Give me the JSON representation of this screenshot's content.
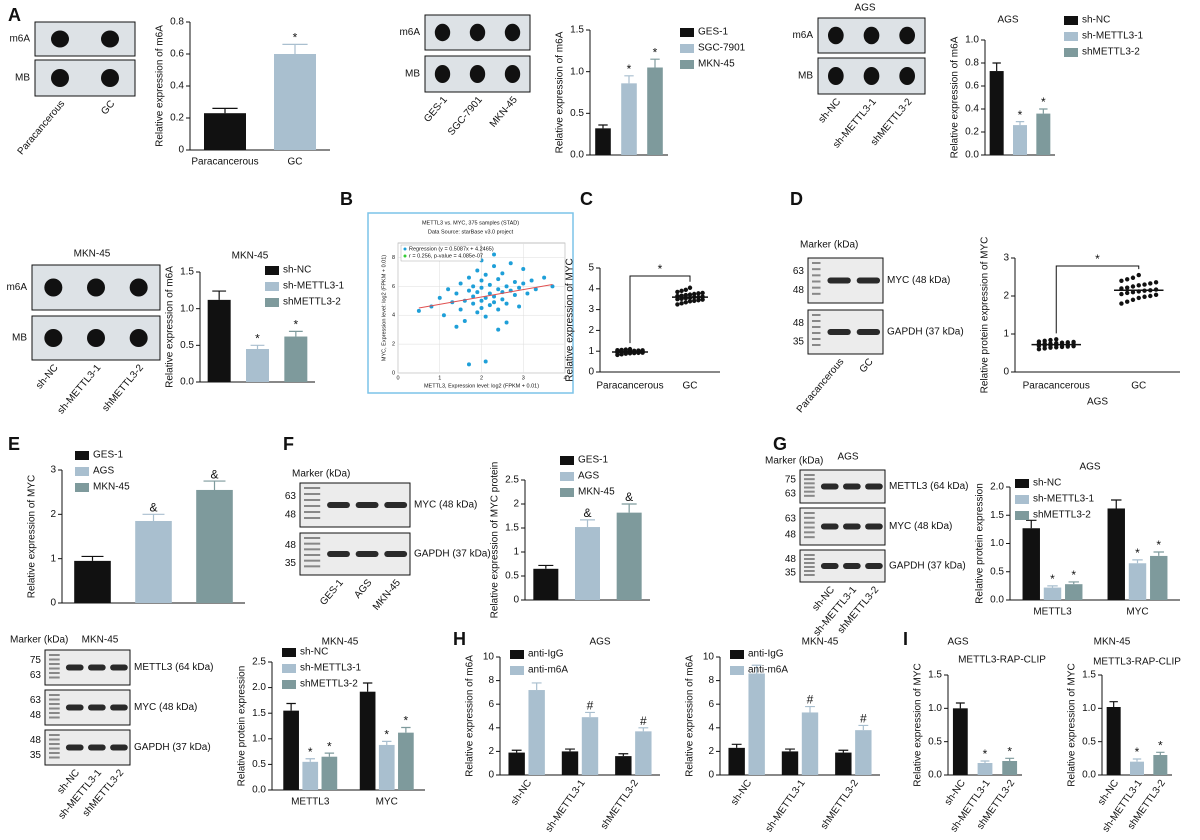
{
  "panel_labels": [
    "A",
    "B",
    "C",
    "D",
    "E",
    "F",
    "G",
    "H",
    "I"
  ],
  "blots": [
    {
      "rows": [
        {
          "label": "m6A"
        },
        {
          "label": "MB"
        }
      ],
      "lanes": [
        "Paracancerous",
        "GC"
      ]
    },
    {
      "rows": [
        {
          "label": "m6A"
        },
        {
          "label": "MB"
        }
      ],
      "lanes": [
        "GES-1",
        "SGC-7901",
        "MKN-45"
      ]
    },
    {
      "title": "AGS",
      "rows": [
        {
          "label": "m6A"
        },
        {
          "label": "MB"
        }
      ],
      "lanes": [
        "sh-NC",
        "sh-METTL3-1",
        "shMETTL3-2"
      ]
    },
    {
      "title": "MKN-45",
      "rows": [
        {
          "label": "m6A"
        },
        {
          "label": "MB"
        }
      ],
      "lanes": [
        "sh-NC",
        "sh-METTL3-1",
        "shMETTL3-2"
      ]
    },
    {
      "marker_title": "Marker (kDa)",
      "rows": [
        {
          "label": "MYC (48 kDa)",
          "markers": [
            63,
            48
          ]
        },
        {
          "label": "GAPDH (37 kDa)",
          "markers": [
            48,
            35
          ]
        }
      ],
      "lanes": [
        "Paracancerous",
        "GC"
      ]
    },
    {
      "marker_title": "Marker (kDa)",
      "rows": [
        {
          "label": "MYC (48 kDa)",
          "markers": [
            63,
            48
          ]
        },
        {
          "label": "GAPDH (37 kDa)",
          "markers": [
            48,
            35
          ]
        }
      ],
      "lanes": [
        "GES-1",
        "AGS",
        "MKN-45"
      ]
    },
    {
      "title": "AGS",
      "marker_title": "Marker (kDa)",
      "rows": [
        {
          "label": "METTL3 (64 kDa)",
          "markers": [
            75,
            63
          ]
        },
        {
          "label": "MYC (48 kDa)",
          "markers": [
            63,
            48
          ]
        },
        {
          "label": "GAPDH (37 kDa)",
          "markers": [
            48,
            35
          ]
        }
      ],
      "lanes": [
        "sh-NC",
        "sh-METTL3-1",
        "shMETTL3-2"
      ]
    },
    {
      "title": "MKN-45",
      "marker_title": "Marker (kDa)",
      "rows": [
        {
          "label": "METTL3 (64 kDa)",
          "markers": [
            75,
            63
          ]
        },
        {
          "label": "MYC (48 kDa)",
          "markers": [
            63,
            48
          ]
        },
        {
          "label": "GAPDH (37 kDa)",
          "markers": [
            48,
            35
          ]
        }
      ],
      "lanes": [
        "sh-NC",
        "sh-METTL3-1",
        "shMETTL3-2"
      ]
    }
  ],
  "chart_data": [
    {
      "type": "bar",
      "ylabel": "Relative expression of m6A",
      "categories": [
        "Paracancerous",
        "GC"
      ],
      "values": [
        0.23,
        0.6
      ],
      "errors": [
        0.03,
        0.06
      ],
      "colors": [
        "#111111",
        "#a9bfcf"
      ],
      "marks": [
        null,
        "*"
      ],
      "ylim": [
        0,
        0.8
      ],
      "yticks": [
        0,
        0.2,
        0.4,
        0.6,
        0.8
      ],
      "legend": false,
      "xlabels": "horizontal"
    },
    {
      "type": "bar",
      "ylabel": "Relative expression of m6A",
      "categories": [
        "GES-1",
        "SGC-7901",
        "MKN-45"
      ],
      "values": [
        0.32,
        0.86,
        1.05
      ],
      "errors": [
        0.04,
        0.09,
        0.1
      ],
      "colors": [
        "#111111",
        "#a9bfcf",
        "#7e9a9c"
      ],
      "marks": [
        null,
        "*",
        "*"
      ],
      "ylim": [
        0,
        1.5
      ],
      "yticks": [
        {
          "value": 0,
          "label": "0.0"
        },
        {
          "value": 0.5,
          "label": "0.5"
        },
        {
          "value": 1,
          "label": "1.0"
        },
        {
          "value": 1.5,
          "label": "1.5"
        }
      ],
      "legend": true,
      "xlabels": "none"
    },
    {
      "type": "bar",
      "title": "AGS",
      "ylabel": "Relative expression of m6A",
      "categories": [
        "sh-NC",
        "sh-METTL3-1",
        "shMETTL3-2"
      ],
      "values": [
        0.73,
        0.26,
        0.36
      ],
      "errors": [
        0.07,
        0.03,
        0.04
      ],
      "colors": [
        "#111111",
        "#a9bfcf",
        "#7e9a9c"
      ],
      "marks": [
        null,
        "*",
        "*"
      ],
      "ylim": [
        0,
        1
      ],
      "yticks": [
        {
          "value": 0,
          "label": "0.0"
        },
        {
          "value": 0.2,
          "label": "0.2"
        },
        {
          "value": 0.4,
          "label": "0.4"
        },
        {
          "value": 0.6,
          "label": "0.6"
        },
        {
          "value": 0.8,
          "label": "0.8"
        },
        {
          "value": 1,
          "label": "1.0"
        }
      ],
      "legend": true,
      "xlabels": "none"
    },
    {
      "type": "bar",
      "title": "MKN-45",
      "ylabel": "Relative expression of m6A",
      "categories": [
        "sh-NC",
        "sh-METTL3-1",
        "shMETTL3-2"
      ],
      "values": [
        1.12,
        0.45,
        0.62
      ],
      "errors": [
        0.12,
        0.05,
        0.07
      ],
      "colors": [
        "#111111",
        "#a9bfcf",
        "#7e9a9c"
      ],
      "marks": [
        null,
        "*",
        "*"
      ],
      "ylim": [
        0,
        1.5
      ],
      "yticks": [
        {
          "value": 0,
          "label": "0.0"
        },
        {
          "value": 0.5,
          "label": "0.5"
        },
        {
          "value": 1,
          "label": "1.0"
        },
        {
          "value": 1.5,
          "label": "1.5"
        }
      ],
      "legend": true,
      "xlabels": "none"
    },
    {
      "type": "scatter",
      "title": "METTL3 vs. MYC, 375 samples (STAD)",
      "subtitle": "Data Source: starBase v3.0 project",
      "legend_entries": [
        "Regression (y = 0.5087x + 4.2465)",
        "r = 0.256, p-value = 4.085e-07"
      ],
      "xlabel": "METTL3, Expression level: log2 (FPKM + 0.01)",
      "ylabel": "MYC, Expression level: log2 (FPKM + 0.01)",
      "regression": {
        "slope": 0.5087,
        "intercept": 4.2465
      },
      "color": "#1e9fd8",
      "line_color": "#e05050",
      "grid": true,
      "xlim": [
        0,
        4
      ],
      "xticks": [
        0,
        1,
        2,
        3,
        4
      ],
      "ylim": [
        0,
        9
      ],
      "yticks": [
        0,
        2,
        4,
        6,
        8
      ],
      "x": [
        0.5,
        0.8,
        1.0,
        1.1,
        1.2,
        1.3,
        1.4,
        1.5,
        1.5,
        1.6,
        1.6,
        1.7,
        1.7,
        1.8,
        1.8,
        1.8,
        1.9,
        1.9,
        1.9,
        2.0,
        2.0,
        2.0,
        2.0,
        2.1,
        2.1,
        2.1,
        2.2,
        2.2,
        2.2,
        2.3,
        2.3,
        2.3,
        2.4,
        2.4,
        2.4,
        2.5,
        2.5,
        2.5,
        2.6,
        2.6,
        2.7,
        2.7,
        2.8,
        2.8,
        2.9,
        2.9,
        3.0,
        3.0,
        3.1,
        3.2,
        3.3,
        3.5,
        3.7,
        1.4,
        2.6,
        2.1,
        1.7,
        2.3,
        2.0,
        2.4
      ],
      "y": [
        4.3,
        4.6,
        5.2,
        4.0,
        5.8,
        4.9,
        5.5,
        6.2,
        4.4,
        5.0,
        3.6,
        5.7,
        6.6,
        4.8,
        5.3,
        6.0,
        4.2,
        5.6,
        7.1,
        5.0,
        5.9,
        4.5,
        6.4,
        5.2,
        3.9,
        6.8,
        5.5,
        4.7,
        6.1,
        5.3,
        7.4,
        4.9,
        5.8,
        4.4,
        6.5,
        5.6,
        6.9,
        5.1,
        6.0,
        4.8,
        5.7,
        7.6,
        5.4,
        6.3,
        5.9,
        4.6,
        6.2,
        7.2,
        5.5,
        6.4,
        5.8,
        6.6,
        6.0,
        3.2,
        3.5,
        0.8,
        0.6,
        8.2,
        7.8,
        3.0
      ]
    },
    {
      "type": "dot",
      "ylabel": "Relative expression of MYC",
      "categories": [
        "Paracancerous",
        "GC"
      ],
      "color": "#111111",
      "bracket": "*",
      "ylim": [
        0,
        5
      ],
      "yticks": [
        0,
        1,
        2,
        3,
        4,
        5
      ],
      "means": [
        0.96,
        3.6
      ],
      "points": [
        [
          0.82,
          0.85,
          0.88,
          0.9,
          0.91,
          0.92,
          0.93,
          0.94,
          0.95,
          0.95,
          0.96,
          0.97,
          0.98,
          0.98,
          0.99,
          1.0,
          1.0,
          1.01,
          1.02,
          1.03,
          1.04,
          1.05,
          1.06,
          1.08,
          1.1
        ],
        [
          3.25,
          3.3,
          3.35,
          3.4,
          3.42,
          3.45,
          3.48,
          3.5,
          3.52,
          3.55,
          3.57,
          3.6,
          3.6,
          3.62,
          3.65,
          3.67,
          3.7,
          3.72,
          3.75,
          3.78,
          3.8,
          3.85,
          3.9,
          3.95,
          4.05
        ]
      ]
    },
    {
      "type": "dot",
      "ylabel": "Relative protein expression of MYC",
      "xlabel": "AGS",
      "categories": [
        "Paracancerous",
        "GC"
      ],
      "color": "#111111",
      "bracket": "*",
      "ylim": [
        0,
        3
      ],
      "yticks": [
        0,
        1,
        2,
        3
      ],
      "means": [
        0.72,
        2.15
      ],
      "points": [
        [
          0.6,
          0.62,
          0.64,
          0.65,
          0.66,
          0.67,
          0.68,
          0.69,
          0.7,
          0.7,
          0.71,
          0.72,
          0.72,
          0.73,
          0.74,
          0.75,
          0.75,
          0.76,
          0.77,
          0.78,
          0.79,
          0.8,
          0.82,
          0.84,
          0.86
        ],
        [
          1.8,
          1.85,
          1.9,
          1.95,
          1.98,
          2.0,
          2.03,
          2.05,
          2.08,
          2.1,
          2.12,
          2.14,
          2.15,
          2.17,
          2.2,
          2.22,
          2.25,
          2.28,
          2.3,
          2.33,
          2.36,
          2.4,
          2.44,
          2.48,
          2.55
        ]
      ]
    },
    {
      "type": "bar",
      "ylabel": "Relative expression of MYC",
      "categories": [
        "GES-1",
        "AGS",
        "MKN-45"
      ],
      "values": [
        0.95,
        1.85,
        2.55
      ],
      "errors": [
        0.1,
        0.15,
        0.2
      ],
      "colors": [
        "#111111",
        "#a9bfcf",
        "#7e9a9c"
      ],
      "marks": [
        null,
        "&",
        "&"
      ],
      "ylim": [
        0,
        3
      ],
      "yticks": [
        0,
        1,
        2,
        3
      ],
      "legend": true,
      "xlabels": "none"
    },
    {
      "type": "bar",
      "ylabel": "Relative expression of MYC protein",
      "categories": [
        "GES-1",
        "AGS",
        "MKN-45"
      ],
      "values": [
        0.65,
        1.52,
        1.82
      ],
      "errors": [
        0.07,
        0.15,
        0.18
      ],
      "colors": [
        "#111111",
        "#a9bfcf",
        "#7e9a9c"
      ],
      "marks": [
        null,
        "&",
        "&"
      ],
      "ylim": [
        0,
        2.5
      ],
      "yticks": [
        0,
        0.5,
        1,
        1.5,
        2,
        2.5
      ],
      "legend": true,
      "xlabels": "none"
    },
    {
      "type": "grouped_bar",
      "title": "AGS",
      "ylabel": "Relative protein expression",
      "categories": [
        "METTL3",
        "MYC"
      ],
      "ylim": [
        0,
        2
      ],
      "yticks": [
        {
          "value": 0,
          "label": "0.0"
        },
        {
          "value": 0.5,
          "label": "0.5"
        },
        {
          "value": 1,
          "label": "1.0"
        },
        {
          "value": 1.5,
          "label": "1.5"
        },
        {
          "value": 2,
          "label": "2.0"
        }
      ],
      "legend": true,
      "xlabels": "horizontal",
      "series": [
        {
          "name": "sh-NC",
          "color": "#111111",
          "values": [
            1.27,
            1.62
          ],
          "errors": [
            0.14,
            0.15
          ],
          "marks": [
            null,
            null
          ]
        },
        {
          "name": "sh-METTL3-1",
          "color": "#a9bfcf",
          "values": [
            0.22,
            0.65
          ],
          "errors": [
            0.03,
            0.06
          ],
          "marks": [
            "*",
            "*"
          ]
        },
        {
          "name": "shMETTL3-2",
          "color": "#7e9a9c",
          "values": [
            0.28,
            0.78
          ],
          "errors": [
            0.04,
            0.07
          ],
          "marks": [
            "*",
            "*"
          ]
        }
      ]
    },
    {
      "type": "grouped_bar",
      "title": "MKN-45",
      "ylabel": "Relative protein expression",
      "categories": [
        "METTL3",
        "MYC"
      ],
      "ylim": [
        0,
        2.5
      ],
      "yticks": [
        {
          "value": 0,
          "label": "0.0"
        },
        {
          "value": 0.5,
          "label": "0.5"
        },
        {
          "value": 1,
          "label": "1.0"
        },
        {
          "value": 1.5,
          "label": "1.5"
        },
        {
          "value": 2,
          "label": "2.0"
        },
        {
          "value": 2.5,
          "label": "2.5"
        }
      ],
      "legend": true,
      "xlabels": "horizontal",
      "series": [
        {
          "name": "sh-NC",
          "color": "#111111",
          "values": [
            1.55,
            1.92
          ],
          "errors": [
            0.14,
            0.17
          ],
          "marks": [
            null,
            null
          ]
        },
        {
          "name": "sh-METTL3-1",
          "color": "#a9bfcf",
          "values": [
            0.55,
            0.88
          ],
          "errors": [
            0.06,
            0.07
          ],
          "marks": [
            "*",
            "*"
          ]
        },
        {
          "name": "shMETTL3-2",
          "color": "#7e9a9c",
          "values": [
            0.65,
            1.12
          ],
          "errors": [
            0.07,
            0.1
          ],
          "marks": [
            "*",
            "*"
          ]
        }
      ]
    },
    {
      "type": "grouped_bar",
      "title": "AGS",
      "ylabel": "Relative expression of m6A",
      "categories": [
        "sh-NC",
        "sh-METTL3-1",
        "shMETTL3-2"
      ],
      "ylim": [
        0,
        10
      ],
      "yticks": [
        0,
        2,
        4,
        6,
        8,
        10
      ],
      "legend": true,
      "xlabels": "rotated",
      "series": [
        {
          "name": "anti-IgG",
          "color": "#111111",
          "values": [
            1.9,
            2.0,
            1.6
          ],
          "errors": [
            0.2,
            0.2,
            0.2
          ],
          "marks": [
            null,
            null,
            null
          ]
        },
        {
          "name": "anti-m6A",
          "color": "#a9bfcf",
          "values": [
            7.2,
            4.9,
            3.7
          ],
          "errors": [
            0.6,
            0.4,
            0.3
          ],
          "marks": [
            null,
            "#",
            "#"
          ]
        }
      ]
    },
    {
      "type": "grouped_bar",
      "title": "MKN-45",
      "ylabel": "Relative expression of m6A",
      "categories": [
        "sh-NC",
        "sh-METTL3-1",
        "shMETTL3-2"
      ],
      "ylim": [
        0,
        10
      ],
      "yticks": [
        0,
        2,
        4,
        6,
        8,
        10
      ],
      "legend": true,
      "xlabels": "rotated",
      "series": [
        {
          "name": "anti-IgG",
          "color": "#111111",
          "values": [
            2.3,
            2.0,
            1.9
          ],
          "errors": [
            0.3,
            0.2,
            0.2
          ],
          "marks": [
            null,
            null,
            null
          ]
        },
        {
          "name": "anti-m6A",
          "color": "#a9bfcf",
          "values": [
            8.6,
            5.3,
            3.8
          ],
          "errors": [
            0.7,
            0.5,
            0.4
          ],
          "marks": [
            null,
            "#",
            "#"
          ]
        }
      ]
    },
    {
      "type": "bar",
      "title": "AGS",
      "subtitle": "METTL3-RAP-CLIP",
      "ylabel": "Relative expression of MYC",
      "categories": [
        "sh-NC",
        "sh-METTL3-1",
        "shMETTL3-2"
      ],
      "values": [
        1.0,
        0.18,
        0.21
      ],
      "errors": [
        0.08,
        0.03,
        0.04
      ],
      "colors": [
        "#111111",
        "#a9bfcf",
        "#7e9a9c"
      ],
      "marks": [
        null,
        "*",
        "*"
      ],
      "ylim": [
        0,
        1.5
      ],
      "yticks": [
        {
          "value": 0,
          "label": "0.0"
        },
        {
          "value": 0.5,
          "label": "0.5"
        },
        {
          "value": 1,
          "label": "1.0"
        },
        {
          "value": 1.5,
          "label": "1.5"
        }
      ],
      "legend": false,
      "xlabels": "rotated"
    },
    {
      "type": "bar",
      "title": "MKN-45",
      "subtitle": "METTL3-RAP-CLIP",
      "ylabel": "Relative expression of MYC",
      "categories": [
        "sh-NC",
        "sh-METTL3-1",
        "shMETTL3-2"
      ],
      "values": [
        1.02,
        0.2,
        0.3
      ],
      "errors": [
        0.08,
        0.04,
        0.04
      ],
      "colors": [
        "#111111",
        "#a9bfcf",
        "#7e9a9c"
      ],
      "marks": [
        null,
        "*",
        "*"
      ],
      "ylim": [
        0,
        1.5
      ],
      "yticks": [
        {
          "value": 0,
          "label": "0.0"
        },
        {
          "value": 0.5,
          "label": "0.5"
        },
        {
          "value": 1,
          "label": "1.0"
        },
        {
          "value": 1.5,
          "label": "1.5"
        }
      ],
      "legend": false,
      "xlabels": "rotated"
    }
  ]
}
